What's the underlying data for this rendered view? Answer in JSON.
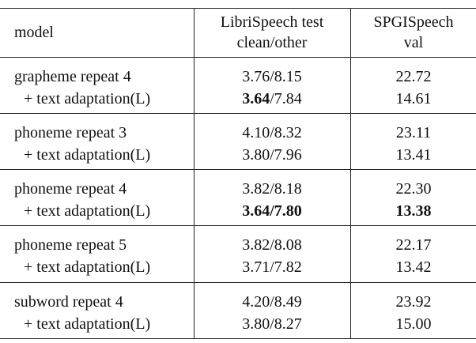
{
  "table": {
    "header": [
      [
        "model"
      ],
      [
        "LibriSpeech test",
        "clean/other"
      ],
      [
        "SPGISpeech",
        "val"
      ]
    ],
    "groups": [
      [
        [
          [
            "grapheme repeat 4"
          ],
          [
            "3.76/8.15"
          ],
          [
            "22.72"
          ]
        ],
        [
          [
            "+ text adaptation(L)"
          ],
          [
            {
              "text": "3.64",
              "bold": true
            },
            "/7.84"
          ],
          [
            "14.61"
          ]
        ]
      ],
      [
        [
          [
            "phoneme repeat 3"
          ],
          [
            "4.10/8.32"
          ],
          [
            "23.11"
          ]
        ],
        [
          [
            "+ text adaptation(L)"
          ],
          [
            "3.80/7.96"
          ],
          [
            "13.41"
          ]
        ]
      ],
      [
        [
          [
            "phoneme repeat 4"
          ],
          [
            "3.82/8.18"
          ],
          [
            "22.30"
          ]
        ],
        [
          [
            "+ text adaptation(L)"
          ],
          [
            {
              "text": "3.64/7.80",
              "bold": true
            }
          ],
          [
            {
              "text": "13.38",
              "bold": true
            }
          ]
        ]
      ],
      [
        [
          [
            "phoneme repeat 5"
          ],
          [
            "3.82/8.08"
          ],
          [
            "22.17"
          ]
        ],
        [
          [
            "+ text adaptation(L)"
          ],
          [
            "3.71/7.82"
          ],
          [
            "13.42"
          ]
        ]
      ],
      [
        [
          [
            "subword repeat 4"
          ],
          [
            "4.20/8.49"
          ],
          [
            "23.92"
          ]
        ],
        [
          [
            "+ text adaptation(L)"
          ],
          [
            "3.80/8.27"
          ],
          [
            "15.00"
          ]
        ]
      ]
    ]
  }
}
